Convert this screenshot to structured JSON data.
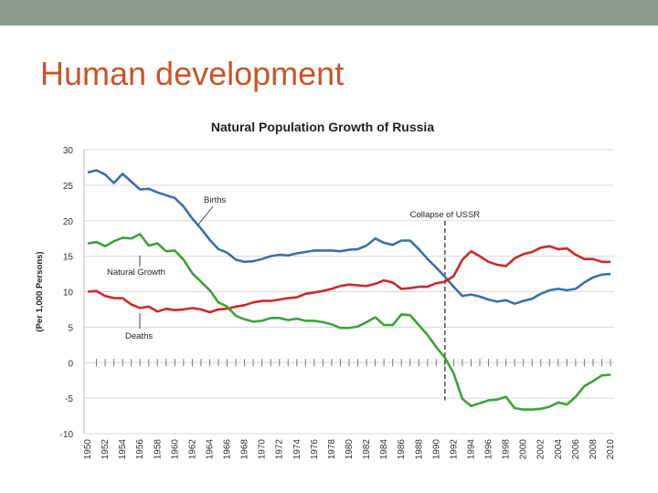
{
  "slide": {
    "title": "Human development"
  },
  "colors": {
    "top_bar": "#8c9c8c",
    "title": "#c8552b",
    "births": "#3b6fb0",
    "deaths": "#cc2a2a",
    "natural_growth": "#3ca23a",
    "grid": "#d9d9d9"
  },
  "chart_data": {
    "type": "line",
    "title": "Natural Population Growth of Russia",
    "ylabel": "(Per 1,000 Persons)",
    "xlabel": "",
    "ylim": [
      -10,
      30
    ],
    "yticks": [
      30,
      25,
      20,
      15,
      10,
      5,
      0,
      -5,
      -10
    ],
    "x": [
      1950,
      1951,
      1952,
      1953,
      1954,
      1955,
      1956,
      1957,
      1958,
      1959,
      1960,
      1961,
      1962,
      1963,
      1964,
      1965,
      1966,
      1967,
      1968,
      1969,
      1970,
      1971,
      1972,
      1973,
      1974,
      1975,
      1976,
      1977,
      1978,
      1979,
      1980,
      1981,
      1982,
      1983,
      1984,
      1985,
      1986,
      1987,
      1988,
      1989,
      1990,
      1991,
      1992,
      1993,
      1994,
      1995,
      1996,
      1997,
      1998,
      1999,
      2000,
      2001,
      2002,
      2003,
      2004,
      2005,
      2006,
      2007,
      2008,
      2009,
      2010
    ],
    "xtick_labels": [
      "1950",
      "1952",
      "1954",
      "1956",
      "1958",
      "1960",
      "1962",
      "1964",
      "1966",
      "1968",
      "1970",
      "1972",
      "1974",
      "1976",
      "1978",
      "1980",
      "1982",
      "1984",
      "1986",
      "1988",
      "1990",
      "1992",
      "1994",
      "1996",
      "1998",
      "2000",
      "2002",
      "2004",
      "2006",
      "2008",
      "2010"
    ],
    "series": [
      {
        "name": "Births",
        "values": [
          26.8,
          27.1,
          26.5,
          25.3,
          26.6,
          25.5,
          24.4,
          24.5,
          24.0,
          23.6,
          23.2,
          22.0,
          20.3,
          18.9,
          17.3,
          16.0,
          15.5,
          14.5,
          14.2,
          14.3,
          14.6,
          15.0,
          15.2,
          15.1,
          15.4,
          15.6,
          15.8,
          15.8,
          15.8,
          15.7,
          15.9,
          16.0,
          16.5,
          17.5,
          16.9,
          16.6,
          17.2,
          17.2,
          16.0,
          14.6,
          13.4,
          12.1,
          10.7,
          9.4,
          9.6,
          9.3,
          8.9,
          8.6,
          8.8,
          8.3,
          8.7,
          9.0,
          9.7,
          10.2,
          10.4,
          10.2,
          10.4,
          11.3,
          12.0,
          12.4,
          12.5
        ]
      },
      {
        "name": "Deaths",
        "values": [
          10.0,
          10.1,
          9.4,
          9.1,
          9.1,
          8.2,
          7.7,
          7.9,
          7.2,
          7.6,
          7.4,
          7.5,
          7.7,
          7.5,
          7.1,
          7.5,
          7.6,
          7.9,
          8.1,
          8.5,
          8.7,
          8.7,
          8.9,
          9.1,
          9.2,
          9.7,
          9.9,
          10.1,
          10.4,
          10.8,
          11.0,
          10.9,
          10.8,
          11.1,
          11.6,
          11.3,
          10.4,
          10.5,
          10.7,
          10.7,
          11.2,
          11.4,
          12.2,
          14.5,
          15.7,
          15.0,
          14.2,
          13.8,
          13.6,
          14.7,
          15.3,
          15.6,
          16.2,
          16.4,
          16.0,
          16.1,
          15.2,
          14.6,
          14.6,
          14.2,
          14.2
        ]
      },
      {
        "name": "Natural Growth",
        "values": [
          16.8,
          17.0,
          16.4,
          17.1,
          17.6,
          17.5,
          18.1,
          16.5,
          16.8,
          15.7,
          15.8,
          14.5,
          12.6,
          11.4,
          10.2,
          8.5,
          7.9,
          6.6,
          6.1,
          5.8,
          5.9,
          6.3,
          6.3,
          6.0,
          6.2,
          5.9,
          5.9,
          5.7,
          5.4,
          4.9,
          4.9,
          5.1,
          5.7,
          6.4,
          5.3,
          5.3,
          6.8,
          6.7,
          5.3,
          3.9,
          2.2,
          0.7,
          -1.5,
          -5.1,
          -6.1,
          -5.7,
          -5.3,
          -5.2,
          -4.8,
          -6.4,
          -6.6,
          -6.6,
          -6.5,
          -6.2,
          -5.6,
          -5.9,
          -4.8,
          -3.3,
          -2.6,
          -1.8,
          -1.7
        ]
      }
    ],
    "annotations": [
      {
        "text": "Births"
      },
      {
        "text": "Natural Growth"
      },
      {
        "text": "Deaths"
      },
      {
        "text": "Collapse of USSR",
        "x": 1991
      }
    ],
    "grid": true,
    "legend": "none"
  }
}
